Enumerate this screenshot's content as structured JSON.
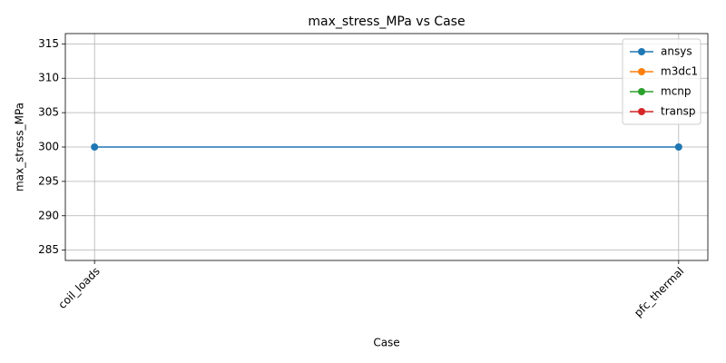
{
  "chart_data": {
    "type": "line",
    "title": "max_stress_MPa vs Case",
    "x_label": "Case",
    "y_label": "max_stress_MPa",
    "categories": [
      "coil_loads",
      "pfc_thermal"
    ],
    "series": [
      {
        "name": "ansys",
        "color": "#1f77b4",
        "values": [
          300,
          300
        ]
      },
      {
        "name": "m3dc1",
        "color": "#ff7f0e",
        "values": [
          null,
          null
        ]
      },
      {
        "name": "mcnp",
        "color": "#2ca02c",
        "values": [
          null,
          null
        ]
      },
      {
        "name": "transp",
        "color": "#d62728",
        "values": [
          null,
          null
        ]
      }
    ],
    "ylim": [
      283.5,
      316.5
    ],
    "yticks": [
      285,
      290,
      295,
      300,
      305,
      310,
      315
    ],
    "grid": true,
    "legend": "upper right"
  }
}
